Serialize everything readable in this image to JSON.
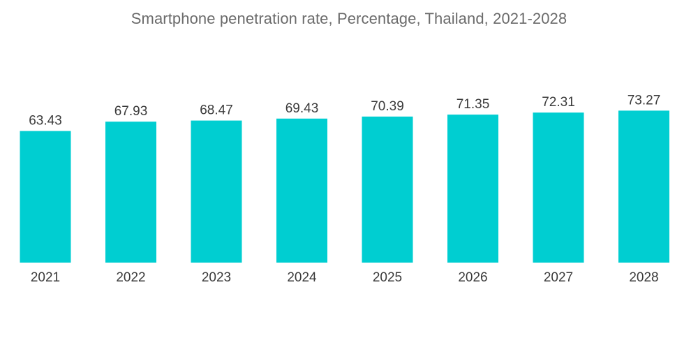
{
  "chart_data": {
    "type": "bar",
    "title": "Smartphone penetration rate, Percentage, Thailand, 2021-2028",
    "categories": [
      "2021",
      "2022",
      "2023",
      "2024",
      "2025",
      "2026",
      "2027",
      "2028"
    ],
    "values": [
      63.43,
      67.93,
      68.47,
      69.43,
      70.39,
      71.35,
      72.31,
      73.27
    ],
    "data_labels": [
      "63.43",
      "67.93",
      "68.47",
      "69.43",
      "70.39",
      "71.35",
      "72.31",
      "73.27"
    ],
    "xlabel": "",
    "ylabel": "",
    "ylim": [
      0,
      80
    ],
    "grid": false,
    "legend": "none",
    "bar_color": "#00ced1"
  }
}
